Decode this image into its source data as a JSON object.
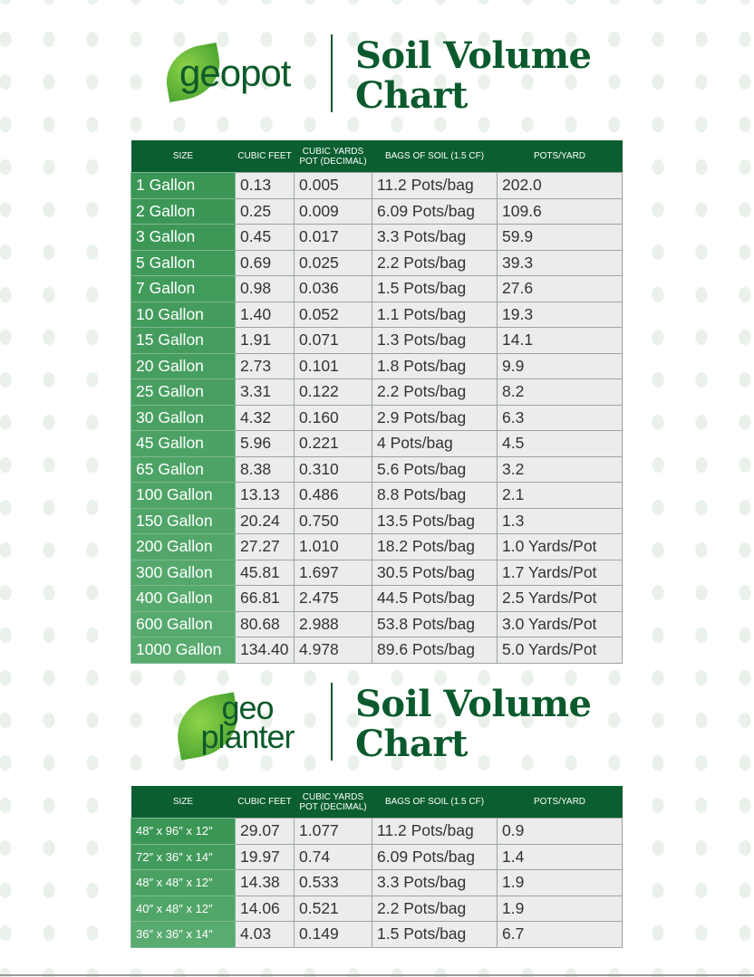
{
  "sections": [
    {
      "brand": "geopot",
      "title_line1": "Soil Volume",
      "title_line2": "Chart",
      "headers": [
        "SIZE",
        "CUBIC FEET",
        "CUBIC YARDS POT (DECIMAL)",
        "BAGS OF SOIL (1.5 CF)",
        "POTS/YARD"
      ],
      "rows": [
        [
          "1 Gallon",
          "0.13",
          "0.005",
          "11.2 Pots/bag",
          "202.0"
        ],
        [
          "2 Gallon",
          "0.25",
          "0.009",
          "6.09 Pots/bag",
          "109.6"
        ],
        [
          "3 Gallon",
          "0.45",
          "0.017",
          "3.3 Pots/bag",
          "59.9"
        ],
        [
          "5 Gallon",
          "0.69",
          "0.025",
          "2.2 Pots/bag",
          "39.3"
        ],
        [
          "7 Gallon",
          "0.98",
          "0.036",
          "1.5 Pots/bag",
          "27.6"
        ],
        [
          "10 Gallon",
          "1.40",
          "0.052",
          "1.1 Pots/bag",
          "19.3"
        ],
        [
          "15 Gallon",
          "1.91",
          "0.071",
          "1.3 Pots/bag",
          "14.1"
        ],
        [
          "20 Gallon",
          "2.73",
          "0.101",
          "1.8 Pots/bag",
          "9.9"
        ],
        [
          "25 Gallon",
          "3.31",
          "0.122",
          "2.2 Pots/bag",
          "8.2"
        ],
        [
          "30 Gallon",
          "4.32",
          "0.160",
          "2.9 Pots/bag",
          "6.3"
        ],
        [
          "45 Gallon",
          "5.96",
          "0.221",
          "4 Pots/bag",
          "4.5"
        ],
        [
          "65 Gallon",
          "8.38",
          "0.310",
          "5.6 Pots/bag",
          "3.2"
        ],
        [
          "100 Gallon",
          "13.13",
          "0.486",
          "8.8 Pots/bag",
          "2.1"
        ],
        [
          "150 Gallon",
          "20.24",
          "0.750",
          "13.5 Pots/bag",
          "1.3"
        ],
        [
          "200 Gallon",
          "27.27",
          "1.010",
          "18.2 Pots/bag",
          "1.0 Yards/Pot"
        ],
        [
          "300 Gallon",
          "45.81",
          "1.697",
          "30.5 Pots/bag",
          "1.7 Yards/Pot"
        ],
        [
          "400 Gallon",
          "66.81",
          "2.475",
          "44.5 Pots/bag",
          "2.5 Yards/Pot"
        ],
        [
          "600 Gallon",
          "80.68",
          "2.988",
          "53.8 Pots/bag",
          "3.0 Yards/Pot"
        ],
        [
          "1000 Gallon",
          "134.40",
          "4.978",
          "89.6 Pots/bag",
          "5.0 Yards/Pot"
        ]
      ]
    },
    {
      "brand": "geo planter",
      "title_line1": "Soil Volume",
      "title_line2": "Chart",
      "headers": [
        "SIZE",
        "CUBIC FEET",
        "CUBIC YARDS POT (DECIMAL)",
        "BAGS OF SOIL (1.5 CF)",
        "POTS/YARD"
      ],
      "rows": [
        [
          "48″ x 96″ x 12″",
          "29.07",
          "1.077",
          "11.2 Pots/bag",
          "0.9"
        ],
        [
          "72″ x 36″ x 14″",
          "19.97",
          "0.74",
          "6.09 Pots/bag",
          "1.4"
        ],
        [
          "48″ x 48″ x 12″",
          "14.38",
          "0.533",
          "3.3 Pots/bag",
          "1.9"
        ],
        [
          "40″ x 48″ x 12″",
          "14.06",
          "0.521",
          "2.2 Pots/bag",
          "1.9"
        ],
        [
          "36″ x 36″ x 14″",
          "4.03",
          "0.149",
          "1.5 Pots/bag",
          "6.7"
        ]
      ]
    }
  ],
  "colors": {
    "header": "#0b5e2f",
    "size_col": "#4aa163",
    "cell": "#ececec",
    "title": "#0b5a2d"
  }
}
